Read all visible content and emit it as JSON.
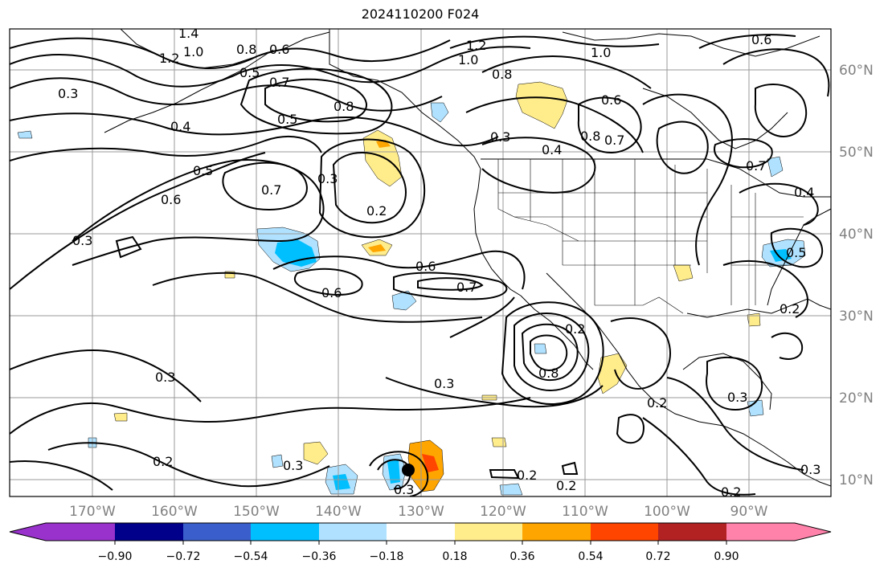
{
  "title": "2024110200 F024",
  "map": {
    "projection": "cylindrical",
    "lon_range": [
      -180,
      -80
    ],
    "lat_range": [
      8,
      65
    ],
    "gridlines": true,
    "latitude_labels": [
      "60°N",
      "50°N",
      "40°N",
      "30°N",
      "20°N",
      "10°N"
    ],
    "longitude_labels": [
      "170°W",
      "160°W",
      "150°W",
      "140°W",
      "130°W",
      "120°W",
      "110°W",
      "100°W",
      "90°W"
    ],
    "contour_color": "#000000",
    "contour_labels": [
      "1.4",
      "1.2",
      "1.0",
      "0.8",
      "0.6",
      "0.5",
      "0.7",
      "0.3",
      "0.4",
      "0.5",
      "0.8",
      "0.7",
      "1.2",
      "1.0",
      "0.8",
      "1.0",
      "0.6",
      "0.8",
      "0.7",
      "0.3",
      "0.4",
      "0.6",
      "0.4",
      "0.5",
      "0.6",
      "0.7",
      "0.3",
      "0.2",
      "0.3",
      "0.6",
      "0.6",
      "0.7",
      "0.5",
      "0.2",
      "0.3",
      "0.3",
      "0.8",
      "0.3",
      "0.2",
      "0.3",
      "0.2",
      "0.3",
      "0.2",
      "0.2",
      "0.2",
      "0.2",
      "0.3"
    ],
    "colorbar": {
      "ticks": [
        "−0.90",
        "−0.72",
        "−0.54",
        "−0.36",
        "−0.18",
        "0.18",
        "0.36",
        "0.54",
        "0.72",
        "0.90"
      ],
      "colors": [
        "#9932cc",
        "#00008b",
        "#3a5fcd",
        "#00bfff",
        "#b0e2ff",
        "#ffffff",
        "#ffec8b",
        "#ffa500",
        "#ff4500",
        "#b22222",
        "#ff82ab"
      ]
    }
  }
}
